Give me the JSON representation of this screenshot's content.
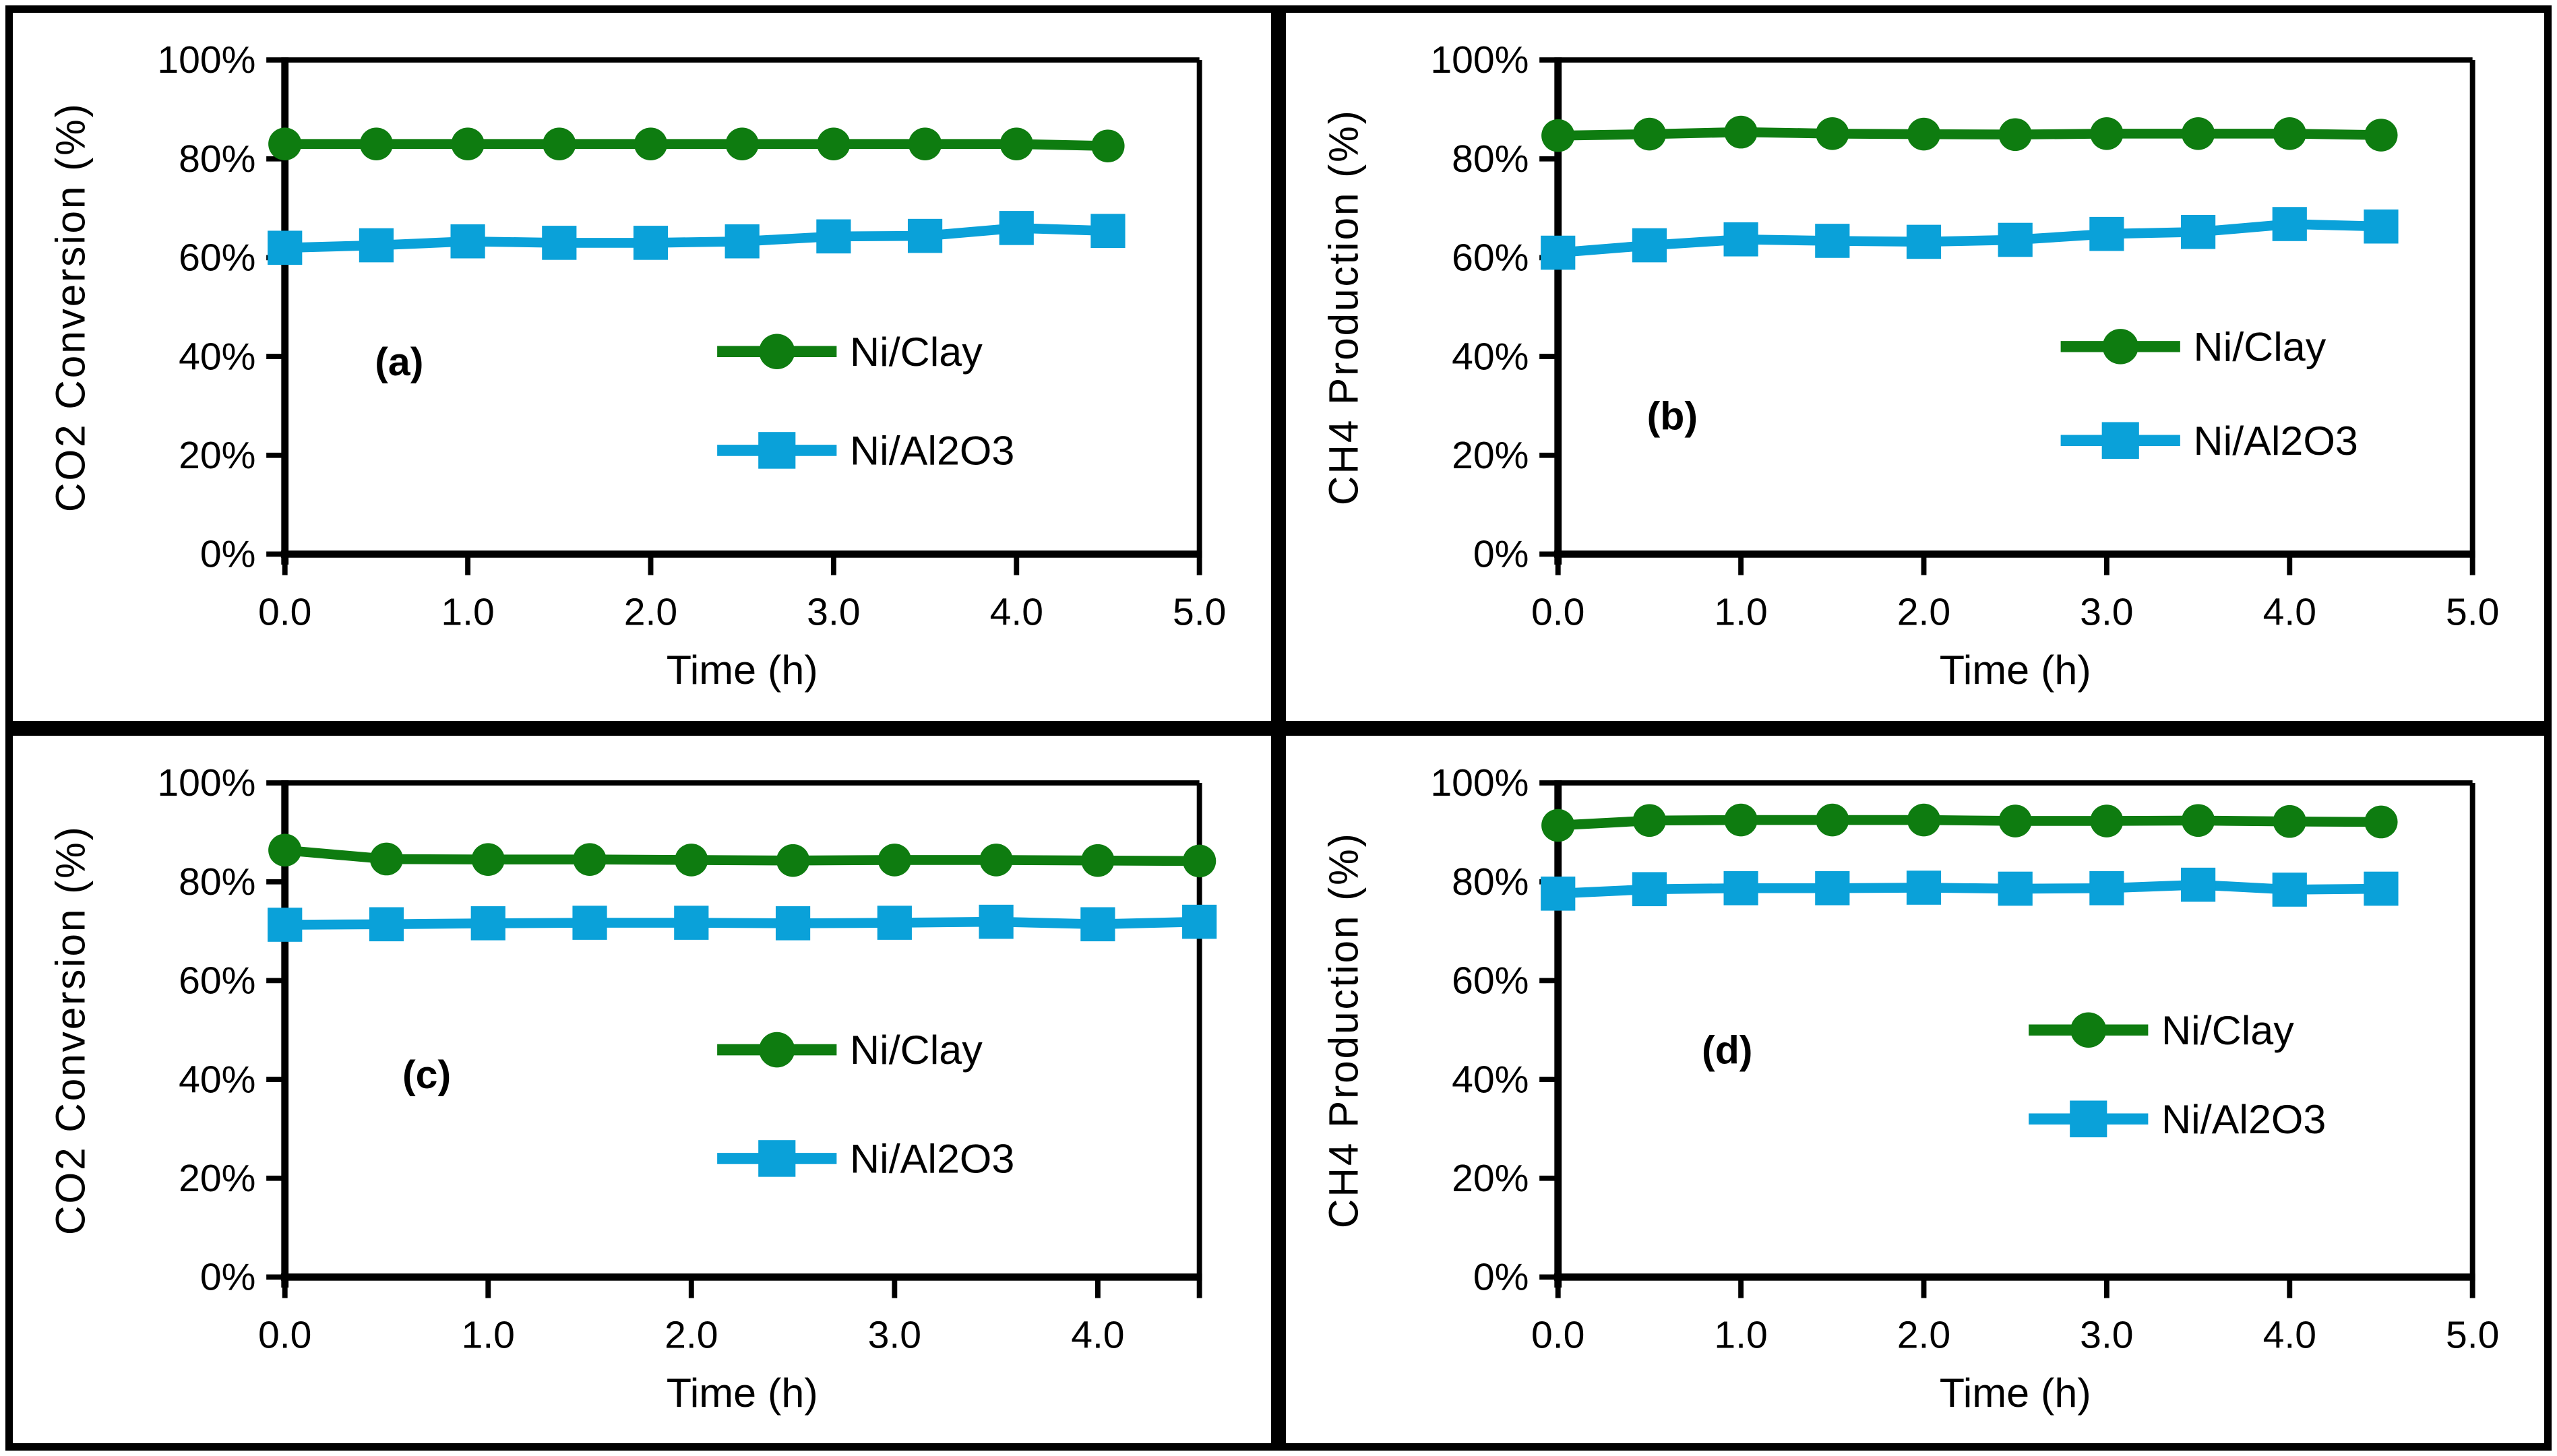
{
  "figure": {
    "background": "#ffffff",
    "border_color": "#000000"
  },
  "colors": {
    "ni_clay": "#0e7c10",
    "ni_al2o3": "#0aa1d9",
    "axis": "#000000",
    "text": "#000000"
  },
  "chart_data": [
    {
      "type": "line",
      "panel_label": "(a)",
      "ylabel": "CO2 Conversion (%)",
      "xlabel": "Time (h)",
      "xlim": [
        0,
        5.0
      ],
      "ylim": [
        0,
        100
      ],
      "grid": false,
      "xticks": [
        0,
        1,
        2,
        3,
        4,
        5
      ],
      "xtick_labels": [
        "0.0",
        "1.0",
        "2.0",
        "3.0",
        "4.0",
        "5.0"
      ],
      "yticks": [
        0,
        20,
        40,
        60,
        80,
        100
      ],
      "ytick_labels": [
        "0%",
        "20%",
        "40%",
        "60%",
        "80%",
        "100%"
      ],
      "x": [
        0,
        0.5,
        1.0,
        1.5,
        2.0,
        2.5,
        3.0,
        3.5,
        4.0,
        4.5
      ],
      "series": [
        {
          "name": "Ni/Clay",
          "marker": "circle",
          "color_key": "ni_clay",
          "values": [
            83.0,
            83.0,
            83.0,
            83.0,
            83.0,
            83.0,
            83.0,
            83.0,
            83.0,
            82.6
          ]
        },
        {
          "name": "Ni/Al2O3",
          "marker": "square",
          "color_key": "ni_al2o3",
          "values": [
            62.0,
            62.5,
            63.3,
            63.0,
            63.0,
            63.3,
            64.3,
            64.4,
            66.0,
            65.4
          ]
        }
      ],
      "legend": {
        "position": "inside-right",
        "fx": 0.538,
        "entry_values_y": [
          41,
          21
        ]
      },
      "label_pos": {
        "fx": 0.125,
        "value_y": 39
      }
    },
    {
      "type": "line",
      "panel_label": "(b)",
      "ylabel": "CH4 Production (%)",
      "xlabel": "Time (h)",
      "xlim": [
        0,
        5.0
      ],
      "ylim": [
        0,
        100
      ],
      "grid": false,
      "xticks": [
        0,
        1,
        2,
        3,
        4,
        5
      ],
      "xtick_labels": [
        "0.0",
        "1.0",
        "2.0",
        "3.0",
        "4.0",
        "5.0"
      ],
      "yticks": [
        0,
        20,
        40,
        60,
        80,
        100
      ],
      "ytick_labels": [
        "0%",
        "20%",
        "40%",
        "60%",
        "80%",
        "100%"
      ],
      "x": [
        0,
        0.5,
        1.0,
        1.5,
        2.0,
        2.5,
        3.0,
        3.5,
        4.0,
        4.5
      ],
      "series": [
        {
          "name": "Ni/Clay",
          "marker": "circle",
          "color_key": "ni_clay",
          "values": [
            84.7,
            85.0,
            85.4,
            85.1,
            85.0,
            84.9,
            85.1,
            85.1,
            85.1,
            84.8
          ]
        },
        {
          "name": "Ni/Al2O3",
          "marker": "square",
          "color_key": "ni_al2o3",
          "values": [
            61.0,
            62.5,
            63.7,
            63.4,
            63.2,
            63.6,
            64.8,
            65.2,
            66.8,
            66.3
          ]
        }
      ],
      "legend": {
        "position": "inside-right",
        "fx": 0.615,
        "entry_values_y": [
          42,
          23
        ]
      },
      "label_pos": {
        "fx": 0.125,
        "value_y": 28
      }
    },
    {
      "type": "line",
      "panel_label": "(c)",
      "ylabel": "CO2 Conversion (%)",
      "xlabel": "Time (h)",
      "xlim": [
        0,
        4.5
      ],
      "ylim": [
        0,
        100
      ],
      "grid": false,
      "xticks": [
        0,
        1,
        2,
        3,
        4,
        4.5
      ],
      "xtick_labels": [
        "0.0",
        "1.0",
        "2.0",
        "3.0",
        "4.0",
        ""
      ],
      "yticks": [
        0,
        20,
        40,
        60,
        80,
        100
      ],
      "ytick_labels": [
        "0%",
        "20%",
        "40%",
        "60%",
        "80%",
        "100%"
      ],
      "x": [
        0,
        0.5,
        1.0,
        1.5,
        2.0,
        2.5,
        3.0,
        3.5,
        4.0,
        4.5
      ],
      "series": [
        {
          "name": "Ni/Clay",
          "marker": "circle",
          "color_key": "ni_clay",
          "values": [
            86.4,
            84.6,
            84.5,
            84.5,
            84.4,
            84.3,
            84.4,
            84.4,
            84.3,
            84.2
          ]
        },
        {
          "name": "Ni/Al2O3",
          "marker": "square",
          "color_key": "ni_al2o3",
          "values": [
            71.3,
            71.4,
            71.6,
            71.7,
            71.7,
            71.6,
            71.7,
            71.9,
            71.4,
            71.9
          ]
        }
      ],
      "legend": {
        "position": "inside-right",
        "fx": 0.538,
        "entry_values_y": [
          46,
          24
        ]
      },
      "label_pos": {
        "fx": 0.155,
        "value_y": 41
      }
    },
    {
      "type": "line",
      "panel_label": "(d)",
      "ylabel": "CH4 Production (%)",
      "xlabel": "Time (h)",
      "xlim": [
        0,
        5.0
      ],
      "ylim": [
        0,
        100
      ],
      "grid": false,
      "xticks": [
        0,
        1,
        2,
        3,
        4,
        5
      ],
      "xtick_labels": [
        "0.0",
        "1.0",
        "2.0",
        "3.0",
        "4.0",
        "5.0"
      ],
      "yticks": [
        0,
        20,
        40,
        60,
        80,
        100
      ],
      "ytick_labels": [
        "0%",
        "20%",
        "40%",
        "60%",
        "80%",
        "100%"
      ],
      "x": [
        0,
        0.5,
        1.0,
        1.5,
        2.0,
        2.5,
        3.0,
        3.5,
        4.0,
        4.5
      ],
      "series": [
        {
          "name": "Ni/Clay",
          "marker": "circle",
          "color_key": "ni_clay",
          "values": [
            91.4,
            92.4,
            92.5,
            92.5,
            92.5,
            92.3,
            92.3,
            92.4,
            92.2,
            92.1
          ]
        },
        {
          "name": "Ni/Al2O3",
          "marker": "square",
          "color_key": "ni_al2o3",
          "values": [
            77.6,
            78.5,
            78.7,
            78.7,
            78.8,
            78.6,
            78.7,
            79.4,
            78.4,
            78.6
          ]
        }
      ],
      "legend": {
        "position": "inside-right",
        "fx": 0.58,
        "entry_values_y": [
          50,
          32
        ]
      },
      "label_pos": {
        "fx": 0.185,
        "value_y": 46
      }
    }
  ]
}
